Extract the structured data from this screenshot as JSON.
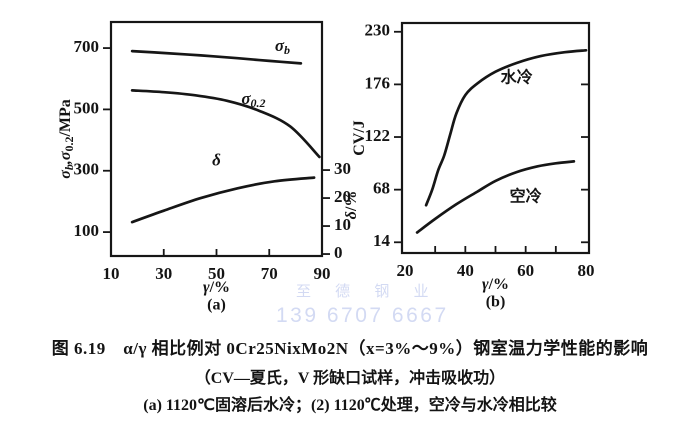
{
  "figure": {
    "caption_line1": "图 6.19　α/γ 相比例对 0Cr25NixMo2N（x=3%～9%）钢室温力学性能的影响",
    "caption_line2": "（CV—夏氏，V 形缺口试样，冲击吸收功）",
    "caption_line3": "(a) 1120℃固溶后水冷；(2) 1120℃处理，空冷与水冷相比较"
  },
  "watermark": {
    "company": "至 德 钢 业",
    "phone": "139 6707 6667",
    "color": "#d3daf3"
  },
  "colors": {
    "ink": "#161616",
    "background": "#ffffff"
  },
  "chart_data": {
    "type": "line",
    "charts": [
      {
        "id": "a",
        "panel_label": "(a)",
        "frame": {
          "l": 111,
          "t": 22,
          "r": 322,
          "b": 256
        },
        "x": {
          "min": 10,
          "max": 90,
          "tick_labels": [
            10,
            30,
            50,
            70,
            90
          ],
          "tick_marks": [
            30,
            50,
            70
          ],
          "title_parts": [
            {
              "t": "γ",
              "it": true
            },
            {
              "t": "/%"
            }
          ]
        },
        "y_left": {
          "min": 22,
          "max": 785,
          "ticks": [
            700,
            500,
            300,
            100
          ],
          "tick_dir": "out",
          "show_labels": true,
          "title_dx": 45,
          "title_parts": [
            {
              "t": "σ",
              "it": true
            },
            {
              "t": "b",
              "sub": true,
              "it": true
            },
            {
              "t": ",σ",
              "it": true
            },
            {
              "t": "0.2",
              "sub": true
            },
            {
              "t": "/MPa"
            }
          ]
        },
        "y_right": {
          "min": -0.7,
          "max": 82.9,
          "ticks": [
            30,
            20,
            10,
            0
          ],
          "tick_dir": "out",
          "show_labels": true,
          "title_dx": 30,
          "title_y": 205,
          "title_parts": [
            {
              "t": "δ",
              "it": true
            },
            {
              "t": "/%"
            }
          ]
        },
        "series": [
          {
            "name": "sigma-b",
            "axis": "left",
            "label_parts": [
              {
                "t": "σ",
                "it": true
              },
              {
                "t": "b",
                "sub": true,
                "it": true
              }
            ],
            "label_at": [
              75,
              704
            ],
            "points": [
              [
                18,
                690
              ],
              [
                30,
                684
              ],
              [
                44,
                676
              ],
              [
                58,
                667
              ],
              [
                70,
                658
              ],
              [
                82,
                650
              ]
            ]
          },
          {
            "name": "sigma-0.2",
            "axis": "left",
            "label_parts": [
              {
                "t": "σ",
                "it": true
              },
              {
                "t": "0.2",
                "sub": true
              }
            ],
            "label_at": [
              64,
              530
            ],
            "points": [
              [
                18,
                562
              ],
              [
                30,
                556
              ],
              [
                42,
                546
              ],
              [
                54,
                528
              ],
              [
                66,
                496
              ],
              [
                78,
                444
              ],
              [
                89,
                345
              ]
            ]
          },
          {
            "name": "delta",
            "axis": "right",
            "label_parts": [
              {
                "t": "δ",
                "it": true
              }
            ],
            "label_at": [
              50,
              33
            ],
            "points": [
              [
                18,
                11.4
              ],
              [
                30,
                15.5
              ],
              [
                44,
                20
              ],
              [
                58,
                23.5
              ],
              [
                72,
                26
              ],
              [
                87,
                27.3
              ]
            ]
          }
        ]
      },
      {
        "id": "b",
        "panel_label": "(b)",
        "frame": {
          "l": 402,
          "t": 23,
          "r": 589,
          "b": 253
        },
        "x": {
          "min": 19,
          "max": 81,
          "tick_labels": [
            20,
            40,
            60,
            80
          ],
          "tick_marks": [
            30,
            40,
            50,
            60,
            70
          ],
          "title_parts": [
            {
              "t": "γ",
              "it": true
            },
            {
              "t": "/%"
            }
          ]
        },
        "y_left": {
          "min": 3,
          "max": 239,
          "ticks": [
            230,
            176,
            122,
            68,
            14
          ],
          "tick_dir": "out",
          "show_labels": true,
          "title_dx": 42,
          "title_parts": [
            {
              "t": "CV/J"
            }
          ]
        },
        "y_right": {
          "min": 3,
          "max": 239,
          "ticks": [
            176,
            122,
            68,
            14
          ],
          "tick_dir": "in",
          "show_labels": false
        },
        "series": [
          {
            "name": "water-cooled",
            "axis": "left",
            "label_cjk": true,
            "label_parts": [
              {
                "t": "水冷"
              }
            ],
            "label_at": [
              57,
              182
            ],
            "points": [
              [
                27,
                52
              ],
              [
                29,
                68
              ],
              [
                31,
                88
              ],
              [
                33,
                103
              ],
              [
                35,
                125
              ],
              [
                37,
                146
              ],
              [
                40,
                165
              ],
              [
                44,
                177
              ],
              [
                50,
                189
              ],
              [
                57,
                198
              ],
              [
                65,
                205
              ],
              [
                73,
                209
              ],
              [
                80,
                211
              ]
            ]
          },
          {
            "name": "air-cooled",
            "axis": "left",
            "label_cjk": true,
            "label_parts": [
              {
                "t": "空冷"
              }
            ],
            "label_at": [
              60,
              60
            ],
            "points": [
              [
                24,
                24
              ],
              [
                30,
                38
              ],
              [
                37,
                53
              ],
              [
                44,
                66
              ],
              [
                50,
                77
              ],
              [
                57,
                86
              ],
              [
                64,
                92
              ],
              [
                70,
                95
              ],
              [
                76,
                97
              ]
            ]
          }
        ]
      }
    ]
  }
}
